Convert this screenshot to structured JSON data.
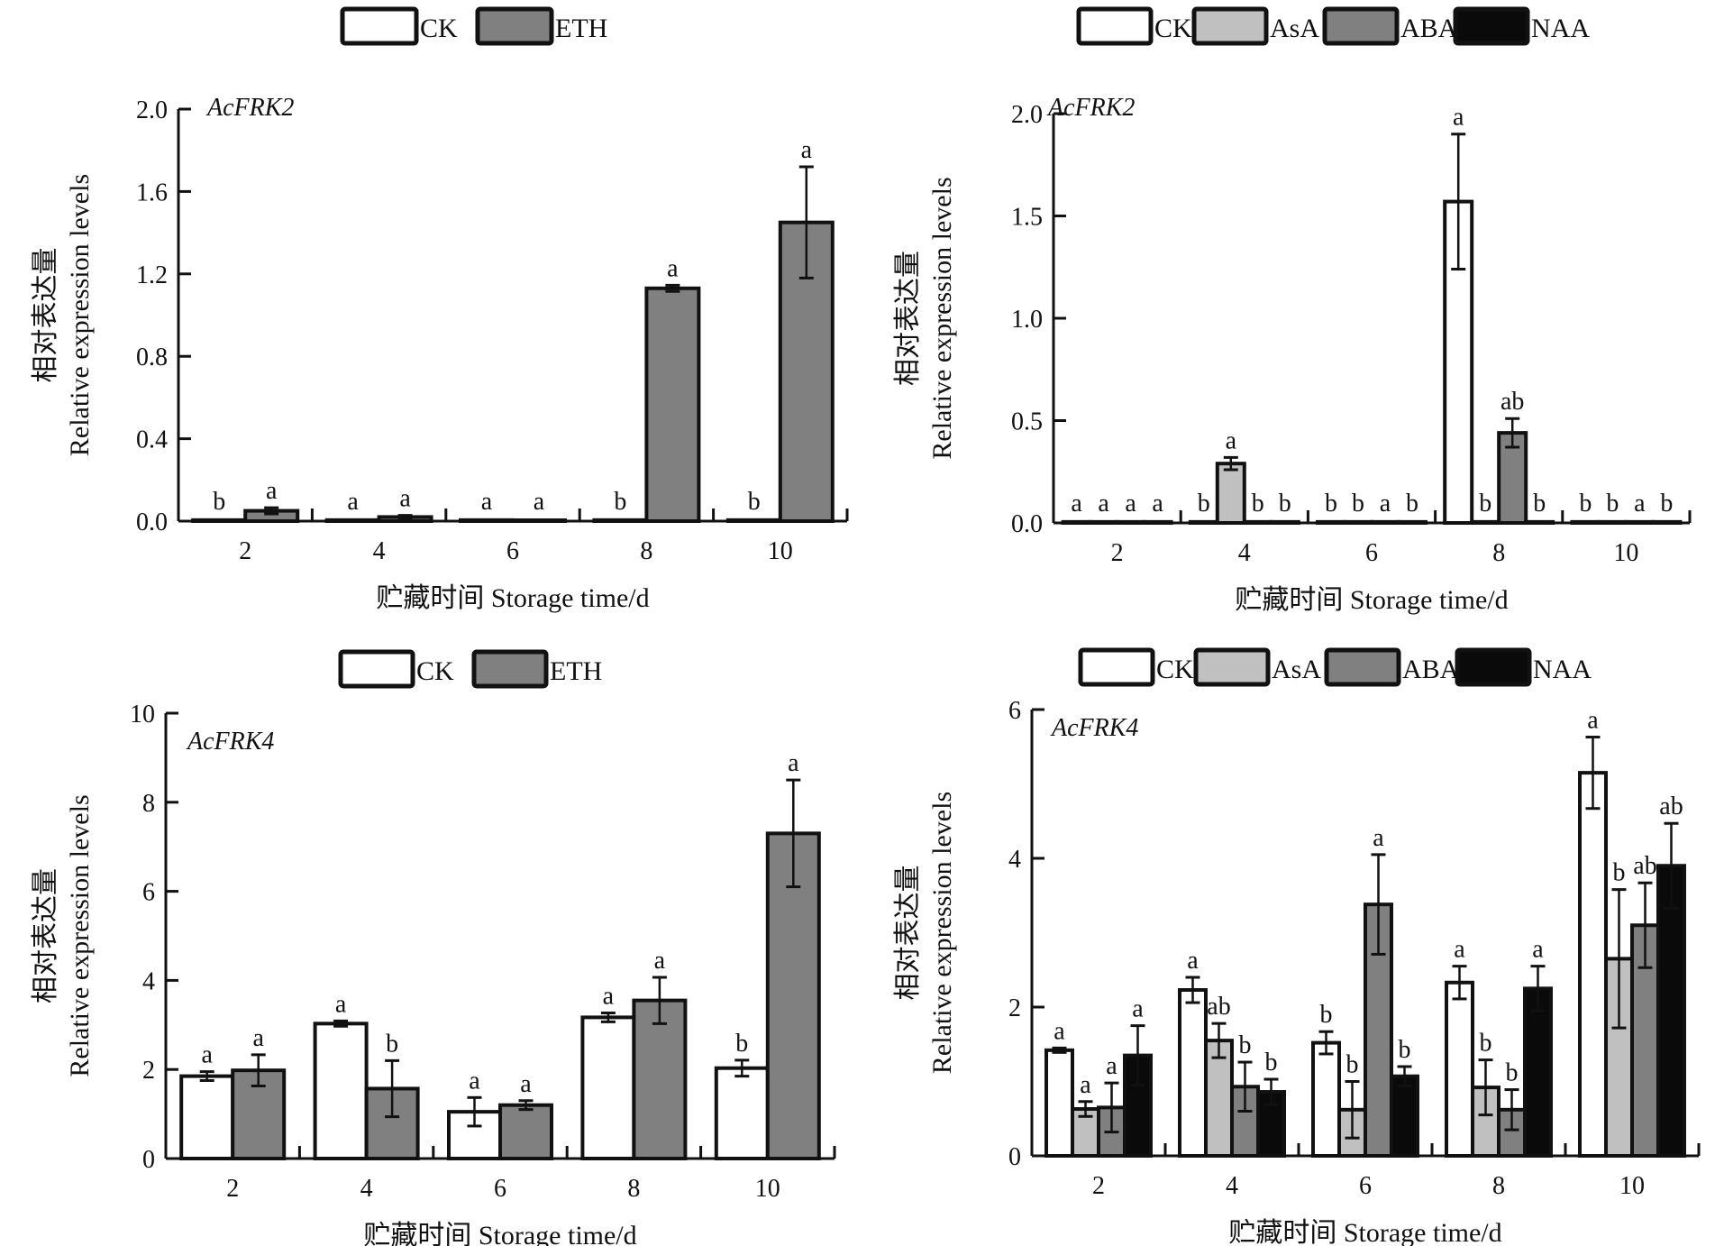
{
  "chart_data": [
    {
      "type": "bar",
      "panel": "top-left",
      "gene_label": "AcFRK2",
      "title": "",
      "xlabel": "贮藏时间 Storage time/d",
      "ylabel_cn": "相对表达量",
      "ylabel_en": "Relative expression levels",
      "categories": [
        "2",
        "4",
        "6",
        "8",
        "10"
      ],
      "ylim": [
        0,
        2.0
      ],
      "yticks": [
        "0.0",
        "0.4",
        "0.8",
        "1.2",
        "1.6",
        "2.0"
      ],
      "ytick_values": [
        0,
        0.4,
        0.8,
        1.2,
        1.6,
        2.0
      ],
      "legend_position": "top-center",
      "series": [
        {
          "name": "CK",
          "color": "#ffffff",
          "values": [
            0.005,
            0.005,
            0.005,
            0.005,
            0.005
          ],
          "errors": [
            0,
            0,
            0,
            0,
            0
          ],
          "letters": [
            "b",
            "a",
            "a",
            "b",
            "b"
          ]
        },
        {
          "name": "ETH",
          "color": "#808080",
          "values": [
            0.05,
            0.02,
            0.004,
            1.13,
            1.45
          ],
          "errors": [
            0.015,
            0.008,
            0,
            0.015,
            0.27
          ],
          "letters": [
            "a",
            "a",
            "a",
            "a",
            "a"
          ]
        }
      ]
    },
    {
      "type": "bar",
      "panel": "top-right",
      "gene_label": "AcFRK2",
      "title": "",
      "xlabel": "贮藏时间 Storage time/d",
      "ylabel_cn": "相对表达量",
      "ylabel_en": "Relative expression levels",
      "categories": [
        "2",
        "4",
        "6",
        "8",
        "10"
      ],
      "ylim": [
        0,
        2.0
      ],
      "yticks": [
        "0.0",
        "0.5",
        "1.0",
        "1.5",
        "2.0"
      ],
      "ytick_values": [
        0,
        0.5,
        1.0,
        1.5,
        2.0
      ],
      "legend_position": "top-center",
      "series": [
        {
          "name": "CK",
          "color": "#ffffff",
          "values": [
            0.005,
            0.005,
            0.005,
            1.57,
            0.005
          ],
          "errors": [
            0,
            0,
            0,
            0.33,
            0
          ],
          "letters": [
            "a",
            "b",
            "b",
            "a",
            "b"
          ]
        },
        {
          "name": "AsA",
          "color": "#c0c0c0",
          "values": [
            0.005,
            0.29,
            0.005,
            0.005,
            0.005
          ],
          "errors": [
            0,
            0.03,
            0,
            0,
            0
          ],
          "letters": [
            "a",
            "a",
            "b",
            "b",
            "b"
          ]
        },
        {
          "name": "ABA",
          "color": "#808080",
          "values": [
            0.005,
            0.005,
            0.005,
            0.44,
            0.005
          ],
          "errors": [
            0,
            0,
            0,
            0.07,
            0
          ],
          "letters": [
            "a",
            "b",
            "a",
            "ab",
            "a"
          ]
        },
        {
          "name": "NAA",
          "color": "#0a0a0a",
          "values": [
            0.005,
            0.005,
            0.005,
            0.005,
            0.005
          ],
          "errors": [
            0,
            0,
            0,
            0,
            0
          ],
          "letters": [
            "a",
            "b",
            "b",
            "b",
            "b"
          ]
        }
      ]
    },
    {
      "type": "bar",
      "panel": "bottom-left",
      "gene_label": "AcFRK4",
      "title": "",
      "xlabel": "贮藏时间 Storage time/d",
      "ylabel_cn": "相对表达量",
      "ylabel_en": "Relative expression levels",
      "categories": [
        "2",
        "4",
        "6",
        "8",
        "10"
      ],
      "ylim": [
        0,
        10
      ],
      "yticks": [
        "0",
        "2",
        "4",
        "6",
        "8",
        "10"
      ],
      "ytick_values": [
        0,
        2,
        4,
        6,
        8,
        10
      ],
      "legend_position": "top-center",
      "series": [
        {
          "name": "CK",
          "color": "#ffffff",
          "values": [
            1.85,
            3.03,
            1.05,
            3.17,
            2.03
          ],
          "errors": [
            0.1,
            0.06,
            0.32,
            0.1,
            0.18
          ],
          "letters": [
            "a",
            "a",
            "a",
            "a",
            "b"
          ]
        },
        {
          "name": "ETH",
          "color": "#808080",
          "values": [
            1.98,
            1.57,
            1.2,
            3.55,
            7.3
          ],
          "errors": [
            0.35,
            0.63,
            0.1,
            0.52,
            1.2
          ],
          "letters": [
            "a",
            "b",
            "a",
            "a",
            "a"
          ]
        }
      ]
    },
    {
      "type": "bar",
      "panel": "bottom-right",
      "gene_label": "AcFRK4",
      "title": "",
      "xlabel": "贮藏时间 Storage time/d",
      "ylabel_cn": "相对表达量",
      "ylabel_en": "Relative expression levels",
      "categories": [
        "2",
        "4",
        "6",
        "8",
        "10"
      ],
      "ylim": [
        0,
        6
      ],
      "yticks": [
        "0",
        "2",
        "4",
        "6"
      ],
      "ytick_values": [
        0,
        2,
        4,
        6
      ],
      "legend_position": "top-center",
      "series": [
        {
          "name": "CK",
          "color": "#ffffff",
          "values": [
            1.42,
            2.23,
            1.52,
            2.33,
            5.15
          ],
          "errors": [
            0.03,
            0.17,
            0.15,
            0.22,
            0.48
          ],
          "letters": [
            "a",
            "a",
            "b",
            "a",
            "a"
          ]
        },
        {
          "name": "AsA",
          "color": "#c0c0c0",
          "values": [
            0.63,
            1.55,
            0.62,
            0.92,
            2.65
          ],
          "errors": [
            0.1,
            0.23,
            0.38,
            0.37,
            0.93
          ],
          "letters": [
            "a",
            "ab",
            "b",
            "b",
            "b"
          ]
        },
        {
          "name": "ABA",
          "color": "#808080",
          "values": [
            0.65,
            0.93,
            3.38,
            0.62,
            3.1
          ],
          "errors": [
            0.33,
            0.33,
            0.67,
            0.27,
            0.57
          ],
          "letters": [
            "a",
            "b",
            "a",
            "b",
            "ab"
          ]
        },
        {
          "name": "NAA",
          "color": "#0a0a0a",
          "values": [
            1.35,
            0.86,
            1.07,
            2.25,
            3.9
          ],
          "errors": [
            0.4,
            0.17,
            0.13,
            0.3,
            0.57
          ],
          "letters": [
            "a",
            "b",
            "b",
            "a",
            "ab"
          ]
        }
      ]
    }
  ]
}
